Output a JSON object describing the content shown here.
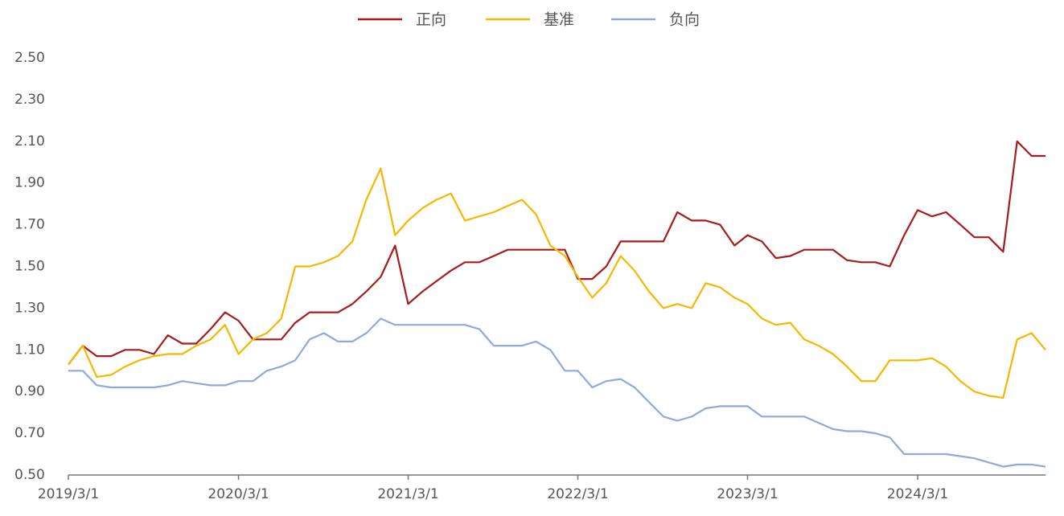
{
  "chart_data": {
    "type": "line",
    "x": [
      "2019/3/1",
      "2019/4/1",
      "2019/5/1",
      "2019/6/1",
      "2019/7/1",
      "2019/8/1",
      "2019/9/1",
      "2019/10/1",
      "2019/11/1",
      "2019/12/1",
      "2020/1/1",
      "2020/2/1",
      "2020/3/1",
      "2020/4/1",
      "2020/5/1",
      "2020/6/1",
      "2020/7/1",
      "2020/8/1",
      "2020/9/1",
      "2020/10/1",
      "2020/11/1",
      "2020/12/1",
      "2021/1/1",
      "2021/2/1",
      "2021/3/1",
      "2021/4/1",
      "2021/5/1",
      "2021/6/1",
      "2021/7/1",
      "2021/8/1",
      "2021/9/1",
      "2021/10/1",
      "2021/11/1",
      "2021/12/1",
      "2022/1/1",
      "2022/2/1",
      "2022/3/1",
      "2022/4/1",
      "2022/5/1",
      "2022/6/1",
      "2022/7/1",
      "2022/8/1",
      "2022/9/1",
      "2022/10/1",
      "2022/11/1",
      "2022/12/1",
      "2023/1/1",
      "2023/2/1",
      "2023/3/1",
      "2023/4/1",
      "2023/5/1",
      "2023/6/1",
      "2023/7/1",
      "2023/8/1",
      "2023/9/1",
      "2023/10/1",
      "2023/11/1",
      "2023/12/1",
      "2024/1/1",
      "2024/2/1",
      "2024/3/1",
      "2024/4/1",
      "2024/5/1",
      "2024/6/1",
      "2024/7/1",
      "2024/8/1",
      "2024/9/1",
      "2024/10/1",
      "2024/11/1",
      "2024/12/1"
    ],
    "series": [
      {
        "name": "正向",
        "color": "#a61c1c",
        "values": [
          1.03,
          1.12,
          1.07,
          1.07,
          1.1,
          1.1,
          1.08,
          1.17,
          1.13,
          1.13,
          1.2,
          1.28,
          1.24,
          1.15,
          1.15,
          1.15,
          1.23,
          1.28,
          1.28,
          1.28,
          1.32,
          1.38,
          1.45,
          1.6,
          1.32,
          1.38,
          1.43,
          1.48,
          1.52,
          1.52,
          1.55,
          1.58,
          1.58,
          1.58,
          1.58,
          1.58,
          1.44,
          1.44,
          1.5,
          1.62,
          1.62,
          1.62,
          1.62,
          1.76,
          1.72,
          1.72,
          1.7,
          1.6,
          1.65,
          1.62,
          1.54,
          1.55,
          1.58,
          1.58,
          1.58,
          1.53,
          1.52,
          1.52,
          1.5,
          1.65,
          1.77,
          1.74,
          1.76,
          1.7,
          1.64,
          1.64,
          1.57,
          2.1,
          2.03,
          2.03
        ]
      },
      {
        "name": "基准",
        "color": "#f5b800",
        "values": [
          1.03,
          1.12,
          0.97,
          0.98,
          1.02,
          1.05,
          1.07,
          1.08,
          1.08,
          1.12,
          1.15,
          1.22,
          1.08,
          1.15,
          1.18,
          1.25,
          1.5,
          1.5,
          1.52,
          1.55,
          1.62,
          1.82,
          1.97,
          1.65,
          1.72,
          1.78,
          1.82,
          1.85,
          1.72,
          1.74,
          1.76,
          1.79,
          1.82,
          1.75,
          1.6,
          1.55,
          1.45,
          1.35,
          1.42,
          1.55,
          1.48,
          1.38,
          1.3,
          1.32,
          1.3,
          1.42,
          1.4,
          1.35,
          1.32,
          1.25,
          1.22,
          1.23,
          1.15,
          1.12,
          1.08,
          1.02,
          0.95,
          0.95,
          1.05,
          1.05,
          1.05,
          1.06,
          1.02,
          0.95,
          0.9,
          0.88,
          0.87,
          1.15,
          1.18,
          1.1
        ]
      },
      {
        "name": "负向",
        "color": "#8eaadb",
        "values": [
          1.0,
          1.0,
          0.93,
          0.92,
          0.92,
          0.92,
          0.92,
          0.93,
          0.95,
          0.94,
          0.93,
          0.93,
          0.95,
          0.95,
          1.0,
          1.02,
          1.05,
          1.15,
          1.18,
          1.14,
          1.14,
          1.18,
          1.25,
          1.22,
          1.22,
          1.22,
          1.22,
          1.22,
          1.22,
          1.2,
          1.12,
          1.12,
          1.12,
          1.14,
          1.1,
          1.0,
          1.0,
          0.92,
          0.95,
          0.96,
          0.92,
          0.85,
          0.78,
          0.76,
          0.78,
          0.82,
          0.83,
          0.83,
          0.83,
          0.78,
          0.78,
          0.78,
          0.78,
          0.75,
          0.72,
          0.71,
          0.71,
          0.7,
          0.68,
          0.6,
          0.6,
          0.6,
          0.6,
          0.59,
          0.58,
          0.56,
          0.54,
          0.55,
          0.55,
          0.54
        ]
      }
    ],
    "xlim": [
      "2019/3/1",
      "2024/12/1"
    ],
    "xticks": [
      "2019/3/1",
      "2020/3/1",
      "2021/3/1",
      "2022/3/1",
      "2023/3/1",
      "2024/3/1"
    ],
    "ylim": [
      0.5,
      2.5
    ],
    "yticks": [
      {
        "value": 0.5,
        "label": "0.50"
      },
      {
        "value": 0.7,
        "label": "0.70"
      },
      {
        "value": 0.9,
        "label": "0.90"
      },
      {
        "value": 1.1,
        "label": "1.10"
      },
      {
        "value": 1.3,
        "label": "1.30"
      },
      {
        "value": 1.5,
        "label": "1.50"
      },
      {
        "value": 1.7,
        "label": "1.70"
      },
      {
        "value": 1.9,
        "label": "1.90"
      },
      {
        "value": 2.1,
        "label": "2.10"
      },
      {
        "value": 2.3,
        "label": "2.30"
      },
      {
        "value": 2.5,
        "label": "2.50"
      }
    ],
    "grid": false,
    "legend": "top"
  }
}
